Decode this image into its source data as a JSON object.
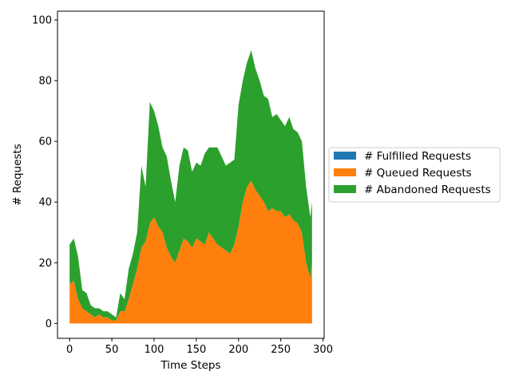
{
  "chart_data": {
    "type": "area",
    "stacked": true,
    "title": "",
    "xlabel": "Time Steps",
    "ylabel": "# Requests",
    "xlim": [
      -14.35,
      301.35
    ],
    "ylim": [
      -4.9,
      102.9
    ],
    "xticks": [
      0,
      50,
      100,
      150,
      200,
      250,
      300
    ],
    "yticks": [
      0,
      20,
      40,
      60,
      80,
      100
    ],
    "grid": false,
    "legend_position": "right",
    "x": [
      0,
      5,
      10,
      15,
      20,
      25,
      30,
      35,
      40,
      45,
      50,
      55,
      60,
      65,
      70,
      75,
      80,
      85,
      90,
      95,
      100,
      105,
      110,
      115,
      120,
      125,
      130,
      135,
      140,
      145,
      150,
      155,
      160,
      165,
      170,
      175,
      180,
      185,
      190,
      195,
      200,
      205,
      210,
      215,
      220,
      225,
      230,
      235,
      240,
      245,
      250,
      255,
      260,
      265,
      270,
      275,
      280,
      285,
      287
    ],
    "series": [
      {
        "name": "# Fulfilled Requests",
        "color": "#1f77b4",
        "values": [
          0,
          0,
          0,
          0,
          0,
          0,
          0,
          0,
          0,
          0,
          0,
          0,
          0,
          0,
          0,
          0,
          0,
          0,
          0,
          0,
          0,
          0,
          0,
          0,
          0,
          0,
          0,
          0,
          0,
          0,
          0,
          0,
          0,
          0,
          0,
          0,
          0,
          0,
          0,
          0,
          0,
          0,
          0,
          0,
          0,
          0,
          0,
          0,
          0,
          0,
          0,
          0,
          0,
          0,
          0,
          0,
          0,
          0,
          0
        ]
      },
      {
        "name": "# Queued Requests",
        "color": "#ff7f0e",
        "values": [
          13,
          14,
          8,
          5,
          4,
          3,
          2,
          3,
          2,
          2,
          1,
          1,
          4,
          4,
          8,
          13,
          18,
          25,
          27,
          33,
          35,
          32,
          30,
          25,
          22,
          20,
          24,
          28,
          27,
          25,
          28,
          27,
          26,
          30,
          28,
          26,
          25,
          24,
          23,
          26,
          32,
          40,
          45,
          47,
          44,
          42,
          40,
          37,
          38,
          37,
          37,
          35,
          36,
          34,
          33,
          30,
          20,
          15,
          20
        ]
      },
      {
        "name": "# Abandoned Requests",
        "color": "#2ca02c",
        "values": [
          13,
          14,
          14,
          6,
          6,
          3,
          3,
          2,
          2,
          2,
          2,
          1,
          6,
          4,
          10,
          10,
          12,
          27,
          18,
          40,
          35,
          33,
          28,
          30,
          25,
          20,
          28,
          30,
          30,
          25,
          25,
          25,
          30,
          28,
          30,
          32,
          30,
          28,
          30,
          28,
          40,
          40,
          41,
          43,
          40,
          38,
          35,
          37,
          30,
          32,
          30,
          30,
          32,
          30,
          30,
          30,
          25,
          20,
          20
        ]
      }
    ]
  }
}
